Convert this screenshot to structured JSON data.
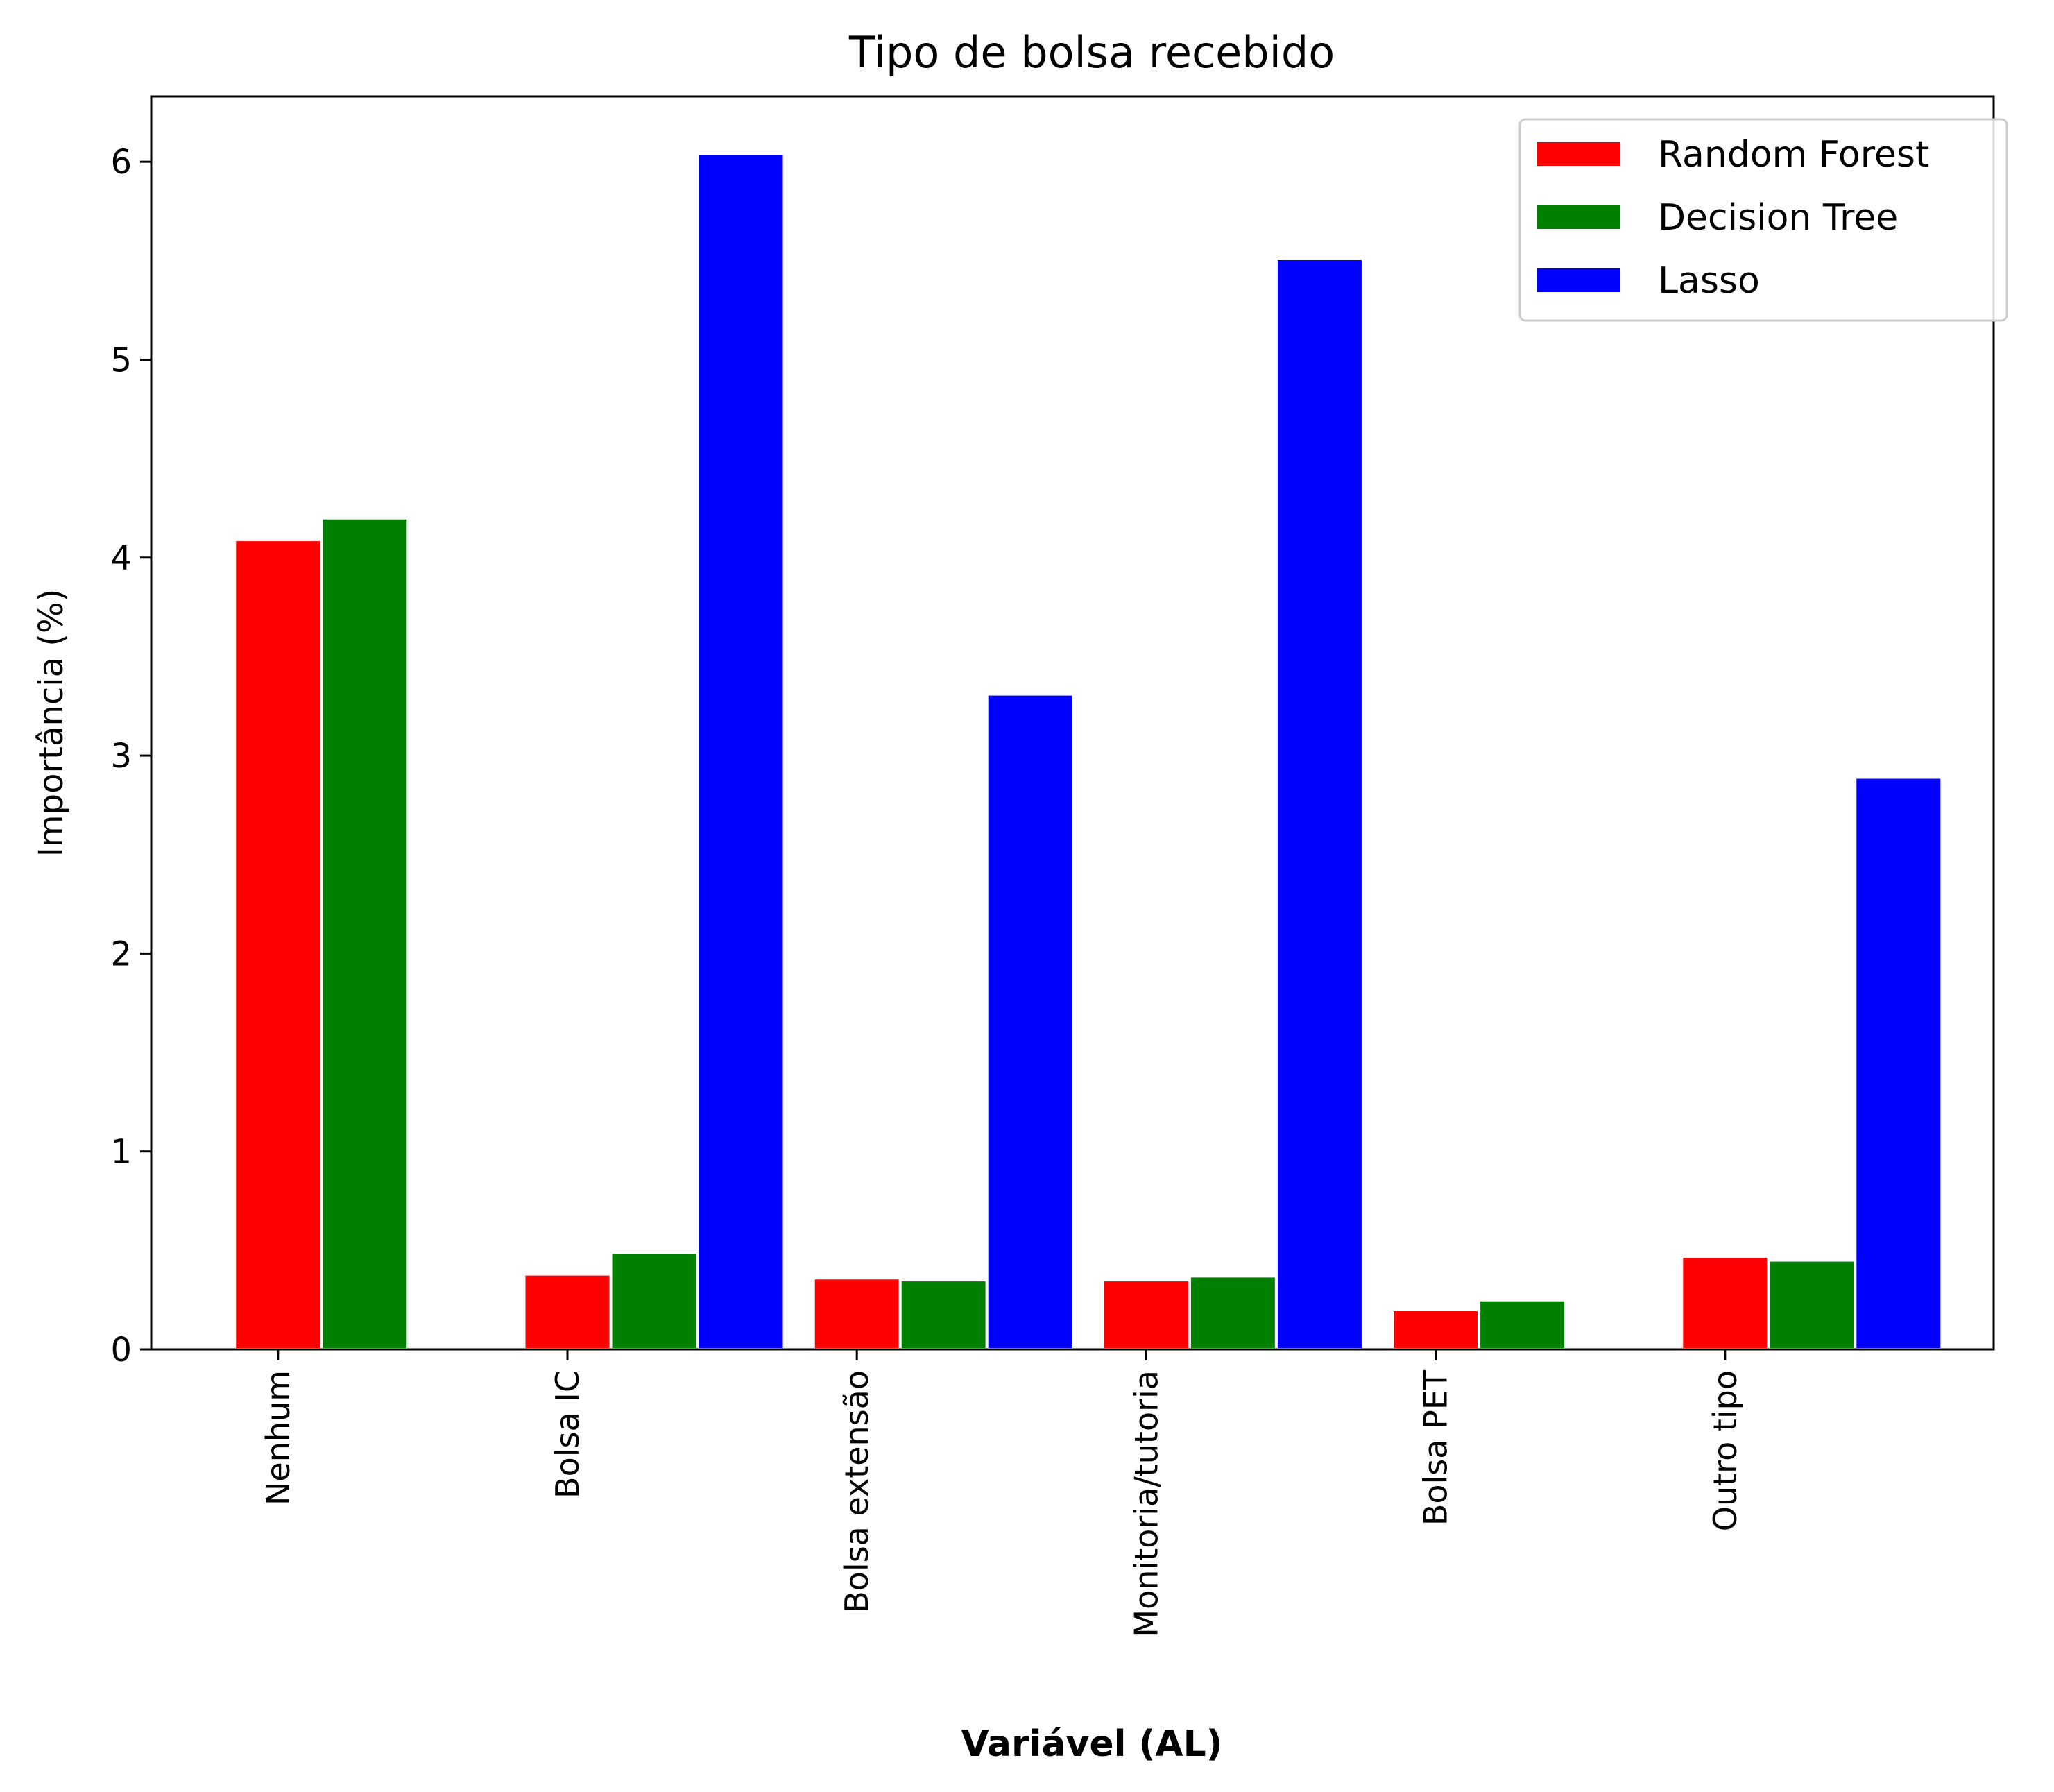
{
  "chart_data": {
    "type": "bar",
    "title": "Tipo de bolsa recebido",
    "xlabel": "Variável (AL)",
    "ylabel": "Importância (%)",
    "categories": [
      "Nenhum",
      "Bolsa IC",
      "Bolsa extensão",
      "Monitoria/tutoria",
      "Bolsa PET",
      "Outro tipo"
    ],
    "series": [
      {
        "name": "Random Forest",
        "color": "#ff0000",
        "values": [
          4.09,
          0.38,
          0.36,
          0.35,
          0.2,
          0.47
        ]
      },
      {
        "name": "Decision Tree",
        "color": "#008000",
        "values": [
          4.2,
          0.49,
          0.35,
          0.37,
          0.25,
          0.45
        ]
      },
      {
        "name": "Lasso",
        "color": "#0000ff",
        "values": [
          0,
          6.04,
          3.31,
          5.51,
          0,
          2.89
        ]
      }
    ],
    "ylim": [
      0,
      6.33
    ],
    "yticks": [
      0,
      1,
      2,
      3,
      4,
      5,
      6
    ],
    "grid": false,
    "legend_position": "top-right"
  }
}
